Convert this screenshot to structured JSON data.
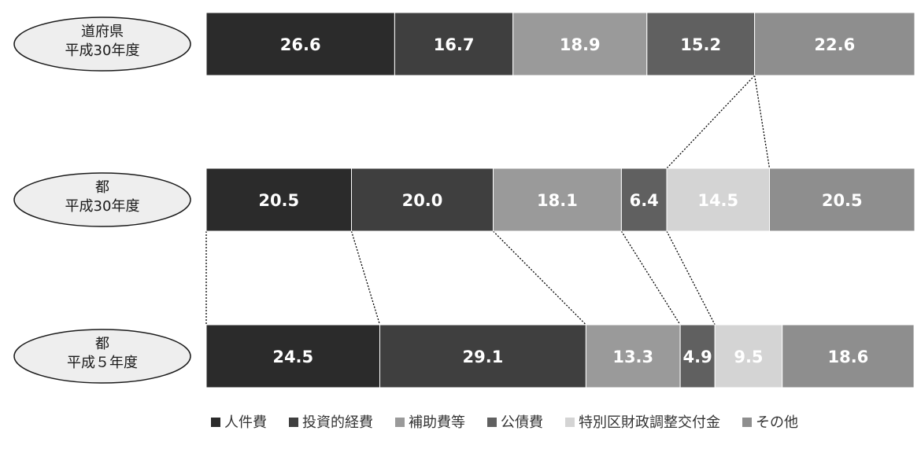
{
  "chart_data": {
    "type": "bar",
    "orientation": "horizontal",
    "stacked": true,
    "categories": [
      "道府県\n平成30年度",
      "都\n平成30年度",
      "都\n平成５年度"
    ],
    "series": [
      {
        "name": "人件費",
        "color": "#2b2b2b",
        "label_color": "#ffffff",
        "values": [
          26.6,
          20.5,
          24.5
        ]
      },
      {
        "name": "投資的経費",
        "color": "#3f3f3f",
        "label_color": "#ffffff",
        "values": [
          16.7,
          20.0,
          29.1
        ]
      },
      {
        "name": "補助費等",
        "color": "#9a9a9a",
        "label_color": "#ffffff",
        "values": [
          18.9,
          18.1,
          13.3
        ]
      },
      {
        "name": "公債費",
        "color": "#606060",
        "label_color": "#ffffff",
        "values": [
          15.2,
          6.4,
          4.9
        ]
      },
      {
        "name": "特別区財政調整交付金",
        "color": "#d4d4d4",
        "label_color": "#ffffff",
        "values": [
          null,
          14.5,
          9.5
        ]
      },
      {
        "name": "その他",
        "color": "#8e8e8e",
        "label_color": "#ffffff",
        "values": [
          22.6,
          20.5,
          18.6
        ]
      }
    ],
    "connectors": [
      {
        "from_row": 0,
        "to_row": 1,
        "boundaries": [
          4,
          5
        ]
      },
      {
        "from_row": 1,
        "to_row": 2,
        "boundaries": [
          0,
          1,
          2,
          3
        ]
      }
    ],
    "legend_position": "bottom"
  }
}
